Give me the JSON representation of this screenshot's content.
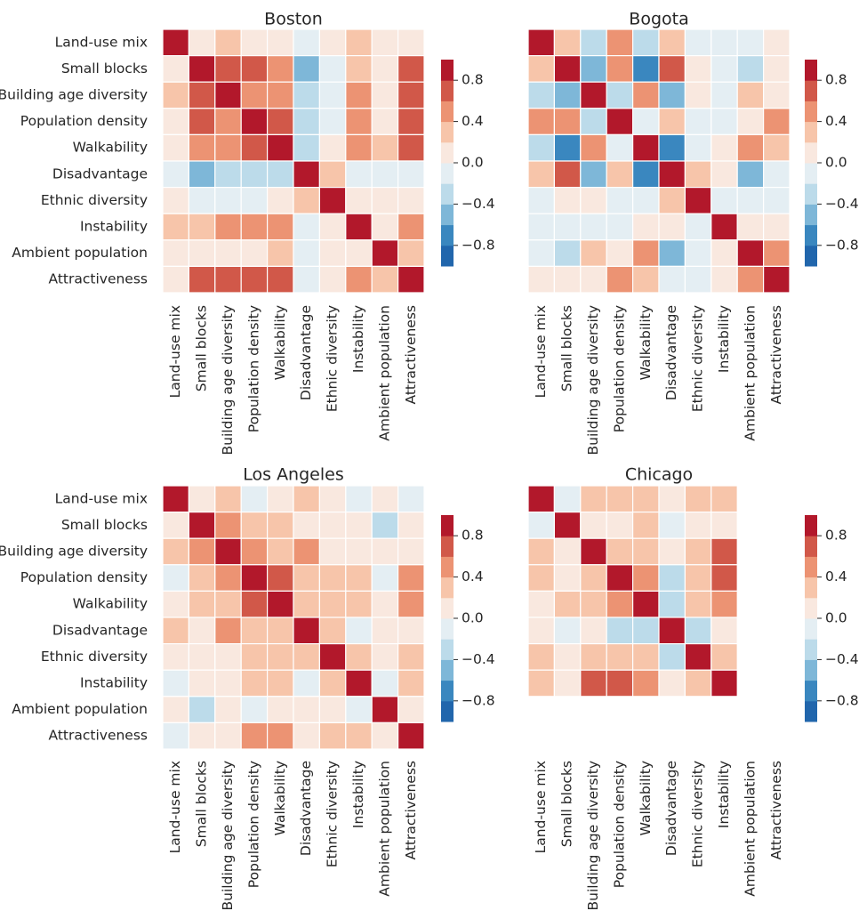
{
  "colors": {
    "levels": [
      "#2166ac",
      "#3a87bf",
      "#7eb7d8",
      "#bcdbea",
      "#e4eef3",
      "#f9e8df",
      "#f7c5aa",
      "#ec9373",
      "#d15849",
      "#b2182b"
    ],
    "grid_line": "#ffffff",
    "text": "#262626"
  },
  "colorbar": {
    "ticks": [
      0.8,
      0.4,
      0.0,
      -0.4,
      -0.8
    ],
    "tick_labels": [
      "0.8",
      "0.4",
      "0.0",
      "−0.4",
      "−0.8"
    ]
  },
  "chart_data": [
    {
      "type": "heatmap",
      "title": "Boston",
      "labels": [
        "Land-use mix",
        "Small blocks",
        "Building age diversity",
        "Population density",
        "Walkability",
        "Disadvantage",
        "Ethnic diversity",
        "Instability",
        "Ambient population",
        "Attractiveness"
      ],
      "show_xlabels": true,
      "show_ylabels": true,
      "zlim": [
        -1,
        1
      ],
      "values": [
        [
          1.0,
          0.05,
          0.25,
          0.05,
          0.05,
          -0.05,
          0.05,
          0.25,
          0.05,
          0.05
        ],
        [
          0.05,
          1.0,
          0.7,
          0.7,
          0.5,
          -0.5,
          -0.05,
          0.25,
          0.05,
          0.7
        ],
        [
          0.25,
          0.7,
          1.0,
          0.5,
          0.5,
          -0.25,
          -0.05,
          0.5,
          0.05,
          0.7
        ],
        [
          0.05,
          0.7,
          0.5,
          1.0,
          0.7,
          -0.25,
          -0.05,
          0.5,
          0.05,
          0.7
        ],
        [
          0.05,
          0.5,
          0.5,
          0.7,
          1.0,
          -0.25,
          0.05,
          0.5,
          0.25,
          0.7
        ],
        [
          -0.05,
          -0.5,
          -0.25,
          -0.25,
          -0.25,
          1.0,
          0.25,
          -0.05,
          -0.05,
          -0.05
        ],
        [
          0.05,
          -0.05,
          -0.05,
          -0.05,
          0.05,
          0.25,
          1.0,
          0.05,
          0.05,
          0.05
        ],
        [
          0.25,
          0.25,
          0.5,
          0.5,
          0.5,
          -0.05,
          0.05,
          1.0,
          0.05,
          0.5
        ],
        [
          0.05,
          0.05,
          0.05,
          0.05,
          0.25,
          -0.05,
          0.05,
          0.05,
          1.0,
          0.25
        ],
        [
          0.05,
          0.7,
          0.7,
          0.7,
          0.7,
          -0.05,
          0.05,
          0.5,
          0.25,
          1.0
        ]
      ]
    },
    {
      "type": "heatmap",
      "title": "Bogota",
      "labels": [
        "Land-use mix",
        "Small blocks",
        "Building age diversity",
        "Population density",
        "Walkability",
        "Disadvantage",
        "Ethnic diversity",
        "Instability",
        "Ambient population",
        "Attractiveness"
      ],
      "show_xlabels": true,
      "show_ylabels": false,
      "zlim": [
        -1,
        1
      ],
      "values": [
        [
          1.0,
          0.25,
          -0.25,
          0.5,
          -0.25,
          0.25,
          -0.05,
          -0.05,
          -0.05,
          0.05
        ],
        [
          0.25,
          1.0,
          -0.5,
          0.5,
          -0.7,
          0.7,
          0.05,
          -0.05,
          -0.25,
          0.05
        ],
        [
          -0.25,
          -0.5,
          1.0,
          -0.25,
          0.5,
          -0.5,
          0.05,
          -0.05,
          0.25,
          0.05
        ],
        [
          0.5,
          0.5,
          -0.25,
          1.0,
          -0.05,
          0.25,
          -0.05,
          -0.05,
          0.05,
          0.5
        ],
        [
          -0.25,
          -0.7,
          0.5,
          -0.05,
          1.0,
          -0.7,
          -0.05,
          0.05,
          0.5,
          0.25
        ],
        [
          0.25,
          0.7,
          -0.5,
          0.25,
          -0.7,
          1.0,
          0.25,
          0.05,
          -0.5,
          -0.05
        ],
        [
          -0.05,
          0.05,
          0.05,
          -0.05,
          -0.05,
          0.25,
          1.0,
          -0.05,
          -0.05,
          -0.05
        ],
        [
          -0.05,
          -0.05,
          -0.05,
          -0.05,
          0.05,
          0.05,
          -0.05,
          1.0,
          0.05,
          0.05
        ],
        [
          -0.05,
          -0.25,
          0.25,
          0.05,
          0.5,
          -0.5,
          -0.05,
          0.05,
          1.0,
          0.5
        ],
        [
          0.05,
          0.05,
          0.05,
          0.5,
          0.25,
          -0.05,
          -0.05,
          0.05,
          0.5,
          1.0
        ]
      ]
    },
    {
      "type": "heatmap",
      "title": "Los Angeles",
      "labels": [
        "Land-use mix",
        "Small blocks",
        "Building age diversity",
        "Population density",
        "Walkability",
        "Disadvantage",
        "Ethnic diversity",
        "Instability",
        "Ambient population",
        "Attractiveness"
      ],
      "show_xlabels": true,
      "show_ylabels": true,
      "zlim": [
        -1,
        1
      ],
      "values": [
        [
          1.0,
          0.05,
          0.25,
          -0.05,
          0.05,
          0.25,
          0.05,
          -0.05,
          0.05,
          -0.05
        ],
        [
          0.05,
          1.0,
          0.5,
          0.25,
          0.25,
          0.05,
          0.05,
          0.05,
          -0.25,
          0.05
        ],
        [
          0.25,
          0.5,
          1.0,
          0.5,
          0.25,
          0.5,
          0.05,
          0.05,
          0.05,
          0.05
        ],
        [
          -0.05,
          0.25,
          0.5,
          1.0,
          0.7,
          0.25,
          0.25,
          0.25,
          -0.05,
          0.5
        ],
        [
          0.05,
          0.25,
          0.25,
          0.7,
          1.0,
          0.25,
          0.25,
          0.25,
          0.05,
          0.5
        ],
        [
          0.25,
          0.05,
          0.5,
          0.25,
          0.25,
          1.0,
          0.25,
          -0.05,
          0.05,
          0.05
        ],
        [
          0.05,
          0.05,
          0.05,
          0.25,
          0.25,
          0.25,
          1.0,
          0.25,
          0.05,
          0.25
        ],
        [
          -0.05,
          0.05,
          0.05,
          0.25,
          0.25,
          -0.05,
          0.25,
          1.0,
          -0.05,
          0.25
        ],
        [
          0.05,
          -0.25,
          0.05,
          -0.05,
          0.05,
          0.05,
          0.05,
          -0.05,
          1.0,
          0.05
        ],
        [
          -0.05,
          0.05,
          0.05,
          0.5,
          0.5,
          0.05,
          0.25,
          0.25,
          0.05,
          1.0
        ]
      ]
    },
    {
      "type": "heatmap",
      "title": "Chicago",
      "labels": [
        "Land-use mix",
        "Small blocks",
        "Building age diversity",
        "Population density",
        "Walkability",
        "Disadvantage",
        "Ethnic diversity",
        "Instability",
        "Ambient population",
        "Attractiveness"
      ],
      "row_labels": [
        "Land-use mix",
        "Small blocks",
        "Building age diversity",
        "Population density",
        "Walkability",
        "Disadvantage",
        "Ethnic diversity",
        "Instability"
      ],
      "col_labels": [
        "Land-use mix",
        "Small blocks",
        "Building age diversity",
        "Population density",
        "Walkability",
        "Disadvantage",
        "Ethnic diversity",
        "Instability"
      ],
      "show_xlabels": true,
      "show_ylabels": false,
      "zlim": [
        -1,
        1
      ],
      "values": [
        [
          1.0,
          -0.05,
          0.25,
          0.25,
          0.25,
          0.05,
          0.25,
          0.25
        ],
        [
          -0.05,
          1.0,
          0.05,
          0.05,
          0.25,
          -0.05,
          0.05,
          0.05
        ],
        [
          0.25,
          0.05,
          1.0,
          0.25,
          0.25,
          0.05,
          0.25,
          0.7
        ],
        [
          0.25,
          0.05,
          0.25,
          1.0,
          0.5,
          -0.25,
          0.25,
          0.7
        ],
        [
          0.05,
          0.25,
          0.25,
          0.5,
          1.0,
          -0.25,
          0.25,
          0.5
        ],
        [
          0.05,
          -0.05,
          0.05,
          -0.25,
          -0.25,
          1.0,
          -0.25,
          0.05
        ],
        [
          0.25,
          0.05,
          0.25,
          0.25,
          0.25,
          -0.25,
          1.0,
          0.25
        ],
        [
          0.25,
          0.05,
          0.7,
          0.7,
          0.5,
          0.05,
          0.25,
          1.0
        ]
      ]
    }
  ]
}
